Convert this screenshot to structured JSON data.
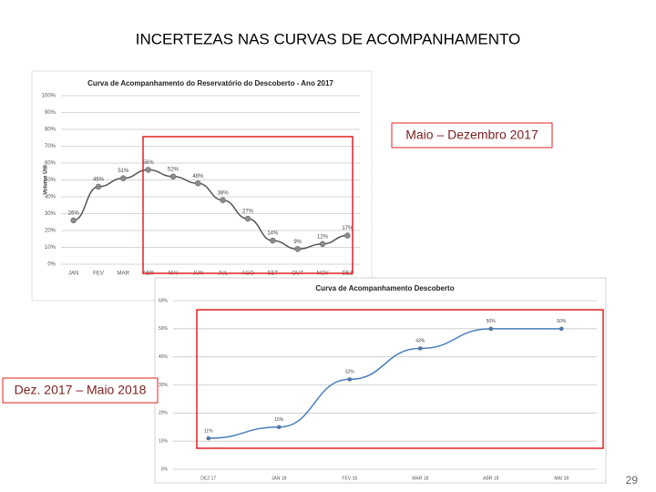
{
  "slide_title": "INCERTEZAS NAS CURVAS DE ACOMPANHAMENTO",
  "callout_1": "Maio – Dezembro 2017",
  "callout_2": "Dez. 2017 – Maio 2018",
  "page_number": "29",
  "chart_data": [
    {
      "type": "line",
      "title": "Curva de Acompanhamento do Reservatório do Descoberto - Ano 2017",
      "y_label": "Volume Útil",
      "color": "#555555",
      "marker_color": "#8c8c8c",
      "grid": true,
      "categories": [
        "JAN",
        "FEV",
        "MAR",
        "ABR",
        "MAI",
        "JUN",
        "JUL",
        "AGO",
        "SET",
        "OUT",
        "NOV",
        "DEZ"
      ],
      "values": [
        26,
        46,
        51,
        56,
        52,
        48,
        38,
        27,
        14,
        9,
        12,
        17
      ],
      "value_labels": [
        "26%",
        "46%",
        "51%",
        "56%",
        "52%",
        "48%",
        "38%",
        "27%",
        "14%",
        "9%",
        "12%",
        "17%"
      ],
      "ylim": [
        0,
        100
      ],
      "yticks": [
        {
          "value": 0,
          "label": "0%"
        },
        {
          "value": 10,
          "label": "10%"
        },
        {
          "value": 20,
          "label": "20%"
        },
        {
          "value": 30,
          "label": "30%"
        },
        {
          "value": 40,
          "label": "40%"
        },
        {
          "value": 50,
          "label": "50%"
        },
        {
          "value": 60,
          "label": "60%"
        },
        {
          "value": 70,
          "label": "70%"
        },
        {
          "value": 80,
          "label": "80%"
        },
        {
          "value": 90,
          "label": "90%"
        },
        {
          "value": 100,
          "label": "100%"
        }
      ]
    },
    {
      "type": "line",
      "title": "Curva de Acompanhamento Descoberto",
      "color": "#4a7ebb",
      "marker_color": "#4a7ebb",
      "grid": true,
      "categories": [
        "DEZ 17",
        "JAN 18",
        "FEV 18",
        "MAR 18",
        "ABR 18",
        "MAI 18"
      ],
      "values": [
        11,
        15,
        32,
        43,
        50,
        50
      ],
      "value_labels": [
        "11%",
        "15%",
        "32%",
        "43%",
        "50%",
        "50%"
      ],
      "ylim": [
        0,
        60
      ],
      "yticks": [
        {
          "value": 0,
          "label": "0%"
        },
        {
          "value": 10,
          "label": "10%"
        },
        {
          "value": 20,
          "label": "20%"
        },
        {
          "value": 30,
          "label": "30%"
        },
        {
          "value": 40,
          "label": "40%"
        },
        {
          "value": 50,
          "label": "50%"
        },
        {
          "value": 60,
          "label": "60%"
        }
      ]
    }
  ]
}
